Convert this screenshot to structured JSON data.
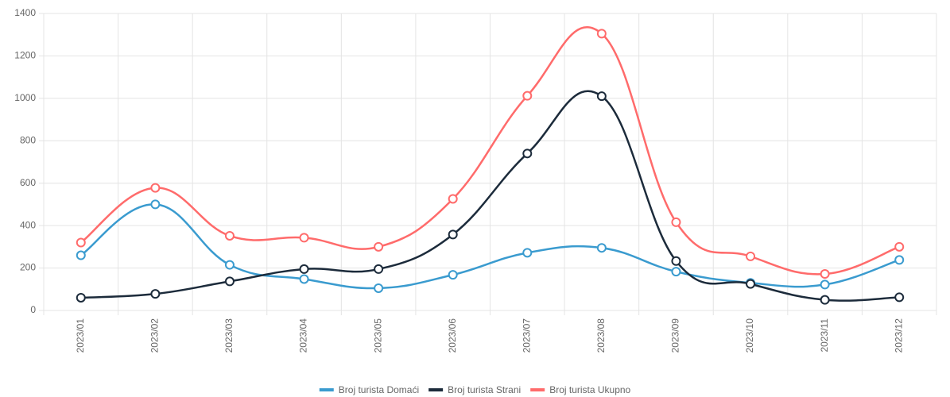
{
  "chart_data": {
    "type": "line",
    "categories": [
      "2023/01",
      "2023/02",
      "2023/03",
      "2023/04",
      "2023/05",
      "2023/06",
      "2023/07",
      "2023/08",
      "2023/09",
      "2023/10",
      "2023/11",
      "2023/12"
    ],
    "series": [
      {
        "name": "Broj turista Domaći",
        "color": "#3a9bcf",
        "values": [
          260,
          500,
          215,
          148,
          105,
          168,
          272,
          295,
          183,
          130,
          122,
          238
        ]
      },
      {
        "name": "Broj turista Strani",
        "color": "#1c2b3b",
        "values": [
          60,
          78,
          137,
          195,
          195,
          358,
          740,
          1010,
          233,
          125,
          50,
          62
        ]
      },
      {
        "name": "Broj turista Ukupno",
        "color": "#ff6b6b",
        "values": [
          320,
          578,
          352,
          343,
          300,
          526,
          1012,
          1305,
          416,
          255,
          172,
          300
        ]
      }
    ],
    "ylim": [
      0,
      1400
    ],
    "yticks": [
      0,
      200,
      400,
      600,
      800,
      1000,
      1200,
      1400
    ],
    "grid": true,
    "legend": "bottom"
  }
}
